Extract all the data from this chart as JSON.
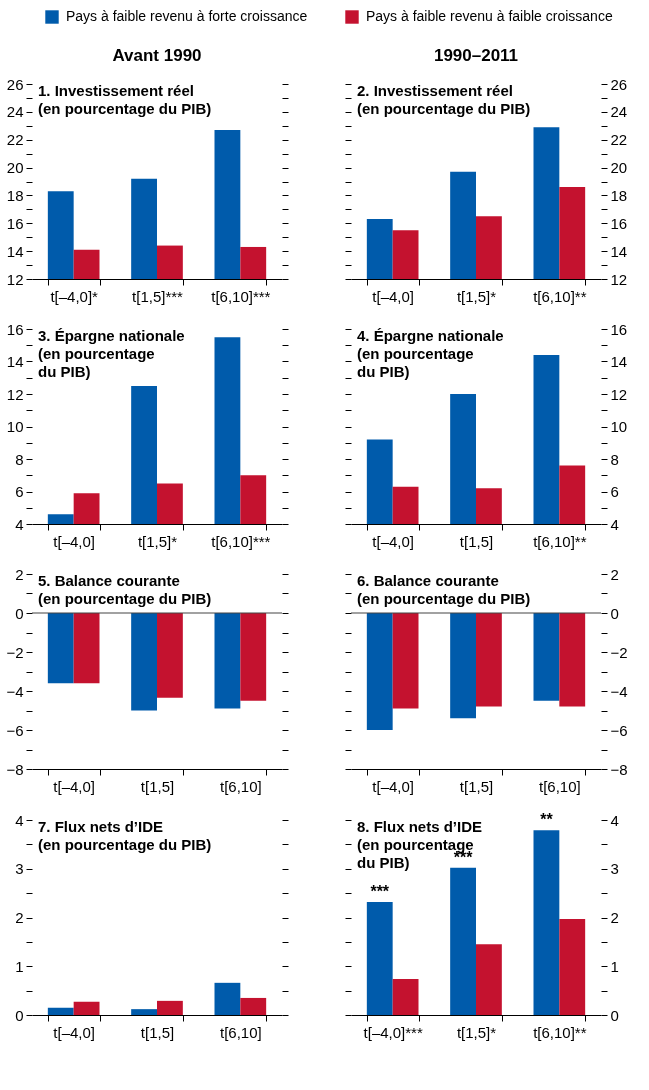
{
  "chart_data": [
    {
      "type": "bar",
      "subtitle": "Avant 1990",
      "title": "1. Investissement réel\n(en pourcentage du PIB)",
      "legend": "top",
      "categories": [
        "t[–4,0]*",
        "t[1,5]***",
        "t[6,10]***"
      ],
      "series": [
        {
          "name": "Pays à faible revenu à forte croissance",
          "color": "#005bab",
          "values": [
            18.3,
            19.2,
            22.7
          ]
        },
        {
          "name": "Pays à faible revenu à faible croissance",
          "color": "#c4122f",
          "values": [
            14.1,
            14.4,
            14.3
          ]
        }
      ],
      "ylim": [
        12,
        26
      ],
      "yticks": [
        12,
        {
          "value": 13,
          "label": null
        },
        14,
        {
          "value": 15,
          "label": null
        },
        16,
        {
          "value": 17,
          "label": null
        },
        18,
        {
          "value": 19,
          "label": null
        },
        20,
        {
          "value": 21,
          "label": null
        },
        22,
        {
          "value": 23,
          "label": null
        },
        24,
        {
          "value": 25,
          "label": null
        },
        26
      ]
    },
    {
      "type": "bar",
      "subtitle": "1990–2011",
      "title": "2. Investissement réel\n(en pourcentage du PIB)",
      "categories": [
        "t[–4,0]",
        "t[1,5]*",
        "t[6,10]**"
      ],
      "series": [
        {
          "color": "#005bab",
          "values": [
            16.3,
            19.7,
            22.9
          ]
        },
        {
          "color": "#c4122f",
          "values": [
            15.5,
            16.5,
            18.6
          ]
        }
      ],
      "ylim": [
        12,
        26
      ],
      "yticks": [
        12,
        {
          "value": 13,
          "label": null
        },
        14,
        {
          "value": 15,
          "label": null
        },
        16,
        {
          "value": 17,
          "label": null
        },
        18,
        {
          "value": 19,
          "label": null
        },
        20,
        {
          "value": 21,
          "label": null
        },
        22,
        {
          "value": 23,
          "label": null
        },
        24,
        {
          "value": 25,
          "label": null
        },
        26
      ]
    },
    {
      "type": "bar",
      "title": "3. Épargne nationale\n(en pourcentage\ndu PIB)",
      "categories": [
        "t[–4,0]",
        "t[1,5]*",
        "t[6,10]***"
      ],
      "series": [
        {
          "color": "#005bab",
          "values": [
            4.6,
            12.5,
            15.5
          ]
        },
        {
          "color": "#c4122f",
          "values": [
            5.9,
            6.5,
            7.0
          ]
        }
      ],
      "ylim": [
        4,
        16
      ],
      "yticks": [
        4,
        {
          "value": 5,
          "label": null
        },
        6,
        {
          "value": 7,
          "label": null
        },
        8,
        {
          "value": 9,
          "label": null
        },
        10,
        {
          "value": 11,
          "label": null
        },
        12,
        {
          "value": 13,
          "label": null
        },
        14,
        {
          "value": 15,
          "label": null
        },
        16
      ]
    },
    {
      "type": "bar",
      "title": "4. Épargne nationale\n(en pourcentage\ndu PIB)",
      "categories": [
        "t[–4,0]",
        "t[1,5]",
        "t[6,10]**"
      ],
      "series": [
        {
          "color": "#005bab",
          "values": [
            9.2,
            12.0,
            14.4
          ]
        },
        {
          "color": "#c4122f",
          "values": [
            6.3,
            6.2,
            7.6
          ]
        }
      ],
      "ylim": [
        4,
        16
      ],
      "yticks": [
        4,
        {
          "value": 5,
          "label": null
        },
        6,
        {
          "value": 7,
          "label": null
        },
        8,
        {
          "value": 9,
          "label": null
        },
        10,
        {
          "value": 11,
          "label": null
        },
        12,
        {
          "value": 13,
          "label": null
        },
        14,
        {
          "value": 15,
          "label": null
        },
        16
      ]
    },
    {
      "type": "bar",
      "title": "5. Balance courante\n(en pourcentage du PIB)",
      "categories": [
        "t[–4,0]",
        "t[1,5]",
        "t[6,10]"
      ],
      "series": [
        {
          "color": "#005bab",
          "values": [
            -3.6,
            -5.0,
            -4.9
          ]
        },
        {
          "color": "#c4122f",
          "values": [
            -3.6,
            -4.35,
            -4.5
          ]
        }
      ],
      "ylim": [
        -8,
        2
      ],
      "yticks": [
        -8,
        {
          "value": -7,
          "label": null
        },
        -6,
        {
          "value": -5,
          "label": null
        },
        -4,
        {
          "value": -3,
          "label": null
        },
        -2,
        {
          "value": -1,
          "label": null
        },
        0,
        {
          "value": 1,
          "label": null
        },
        2
      ],
      "ref_lines": [
        {
          "axis": "y",
          "value": 0,
          "color": "#444444"
        }
      ]
    },
    {
      "type": "bar",
      "title": "6. Balance courante\n(en pourcentage du PIB)",
      "categories": [
        "t[–4,0]",
        "t[1,5]",
        "t[6,10]"
      ],
      "series": [
        {
          "color": "#005bab",
          "values": [
            -6.0,
            -5.4,
            -4.5
          ]
        },
        {
          "color": "#c4122f",
          "values": [
            -4.9,
            -4.8,
            -4.8
          ]
        }
      ],
      "ylim": [
        -8,
        2
      ],
      "yticks": [
        -8,
        {
          "value": -7,
          "label": null
        },
        -6,
        {
          "value": -5,
          "label": null
        },
        -4,
        {
          "value": -3,
          "label": null
        },
        -2,
        {
          "value": -1,
          "label": null
        },
        0,
        {
          "value": 1,
          "label": null
        },
        2
      ],
      "ref_lines": [
        {
          "axis": "y",
          "value": 0,
          "color": "#444444"
        }
      ]
    },
    {
      "type": "bar",
      "title": "7. Flux nets d’IDE\n(en pourcentage du PIB)",
      "categories": [
        "t[–4,0]",
        "t[1,5]",
        "t[6,10]"
      ],
      "series": [
        {
          "color": "#005bab",
          "values": [
            0.15,
            0.12,
            0.66
          ]
        },
        {
          "color": "#c4122f",
          "values": [
            0.27,
            0.29,
            0.35
          ]
        }
      ],
      "ylim": [
        0,
        4
      ],
      "yticks": [
        0,
        {
          "value": 0.5,
          "label": null
        },
        1,
        {
          "value": 1.5,
          "label": null
        },
        2,
        {
          "value": 2.5,
          "label": null
        },
        3,
        {
          "value": 3.5,
          "label": null
        },
        4
      ]
    },
    {
      "type": "bar",
      "title": "8. Flux nets d’IDE\n(en pourcentage\ndu PIB)",
      "categories": [
        "t[–4,0]***",
        "t[1,5]*",
        "t[6,10]**"
      ],
      "series": [
        {
          "color": "#005bab",
          "values": [
            2.32,
            3.02,
            3.79
          ]
        },
        {
          "color": "#c4122f",
          "values": [
            0.74,
            1.45,
            1.97
          ]
        }
      ],
      "ylim": [
        0,
        4
      ],
      "yticks": [
        0,
        {
          "value": 0.5,
          "label": null
        },
        1,
        {
          "value": 1.5,
          "label": null
        },
        2,
        {
          "value": 2.5,
          "label": null
        },
        3,
        {
          "value": 3.5,
          "label": null
        },
        4
      ],
      "annotations": [
        {
          "text": "***",
          "x": "t[–4,0]***",
          "y": 2.32
        },
        {
          "text": "***",
          "x": "t[1,5]*",
          "y": 3.02
        },
        {
          "text": "**",
          "x": "t[6,10]**",
          "y": 3.79
        }
      ]
    }
  ]
}
